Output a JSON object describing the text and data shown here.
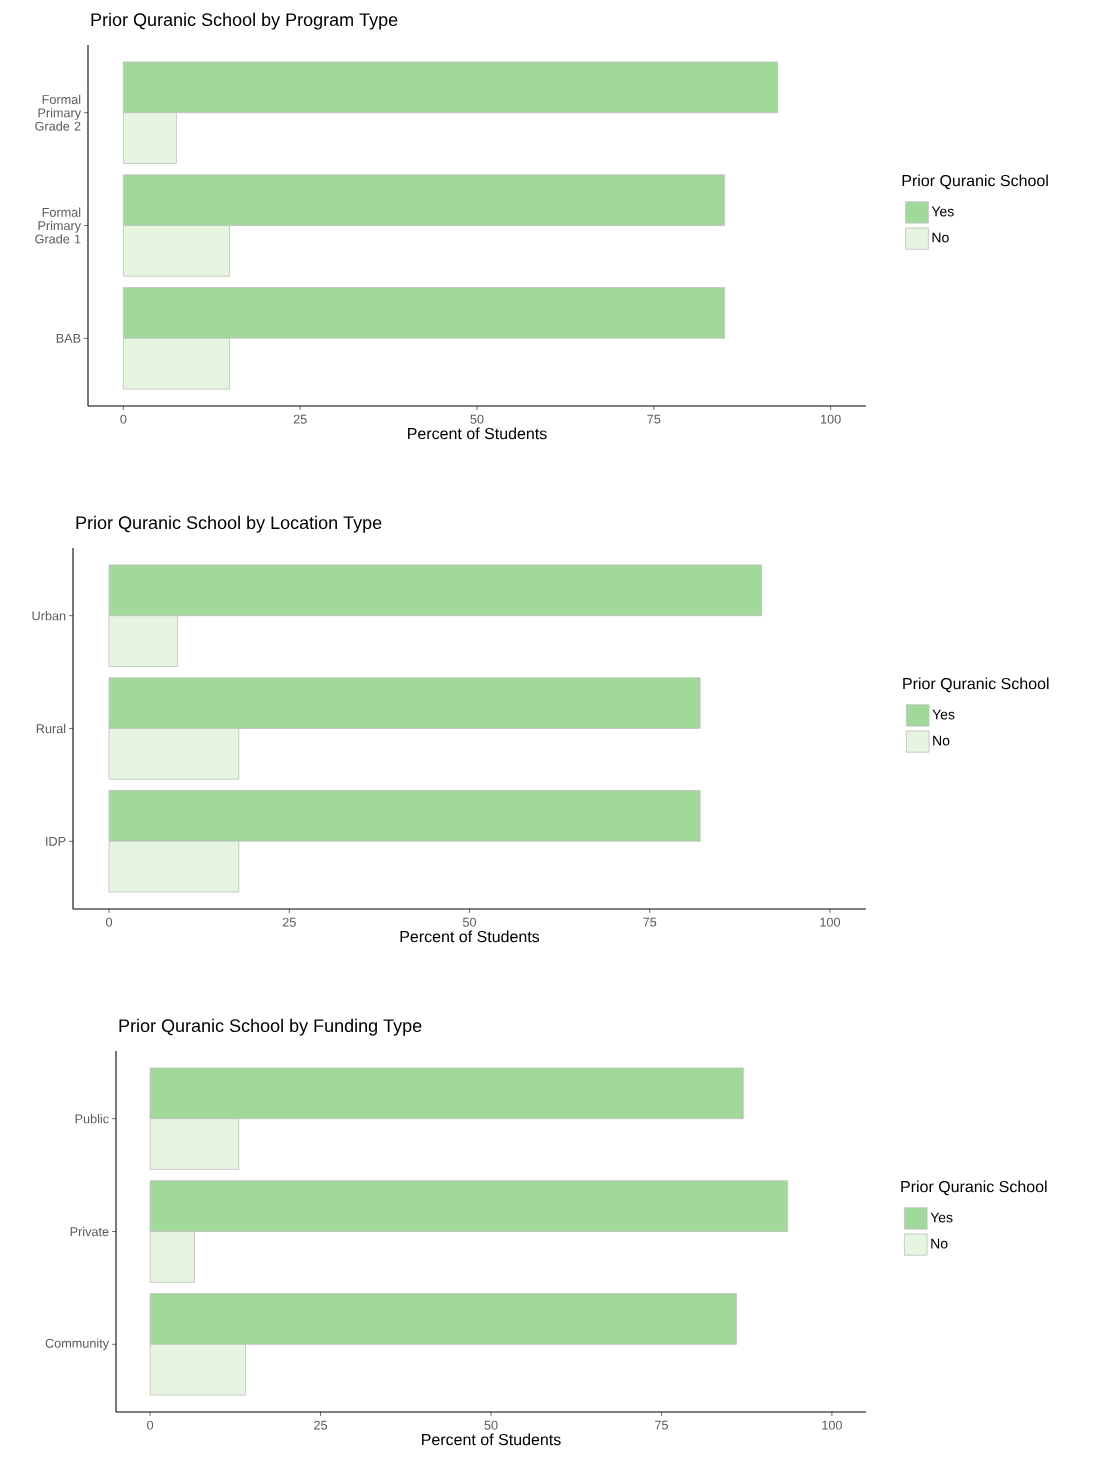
{
  "chart_data": [
    {
      "type": "bar",
      "orientation": "horizontal",
      "title": "Prior Quranic School by Program Type",
      "xlabel": "Percent of Students",
      "legend_title": "Prior Quranic School",
      "legend": "right",
      "categories": [
        "Formal Primary Grade 2",
        "Formal Primary Grade 1",
        "BAB"
      ],
      "series": [
        {
          "name": "Yes",
          "color": "#a1d99b",
          "values": [
            92.5,
            85,
            85
          ]
        },
        {
          "name": "No",
          "color": "#e5f5e0",
          "values": [
            7.5,
            15,
            15
          ]
        }
      ],
      "xlim": [
        -5,
        105
      ],
      "xticks": [
        0,
        25,
        50,
        75,
        100
      ]
    },
    {
      "type": "bar",
      "orientation": "horizontal",
      "title": "Prior Quranic School by Location Type",
      "xlabel": "Percent of Students",
      "legend_title": "Prior Quranic School",
      "legend": "right",
      "categories": [
        "Urban",
        "Rural",
        "IDP"
      ],
      "series": [
        {
          "name": "Yes",
          "color": "#a1d99b",
          "values": [
            90.5,
            82,
            82
          ]
        },
        {
          "name": "No",
          "color": "#e5f5e0",
          "values": [
            9.5,
            18,
            18
          ]
        }
      ],
      "xlim": [
        -5,
        105
      ],
      "xticks": [
        0,
        25,
        50,
        75,
        100
      ]
    },
    {
      "type": "bar",
      "orientation": "horizontal",
      "title": "Prior Quranic School by Funding Type",
      "xlabel": "Percent of Students",
      "legend_title": "Prior Quranic School",
      "legend": "right",
      "categories": [
        "Public",
        "Private",
        "Community"
      ],
      "series": [
        {
          "name": "Yes",
          "color": "#a1d99b",
          "values": [
            87,
            93.5,
            86
          ]
        },
        {
          "name": "No",
          "color": "#e5f5e0",
          "values": [
            13,
            6.5,
            14
          ]
        }
      ],
      "xlim": [
        -5,
        105
      ],
      "xticks": [
        0,
        25,
        50,
        75,
        100
      ]
    }
  ]
}
